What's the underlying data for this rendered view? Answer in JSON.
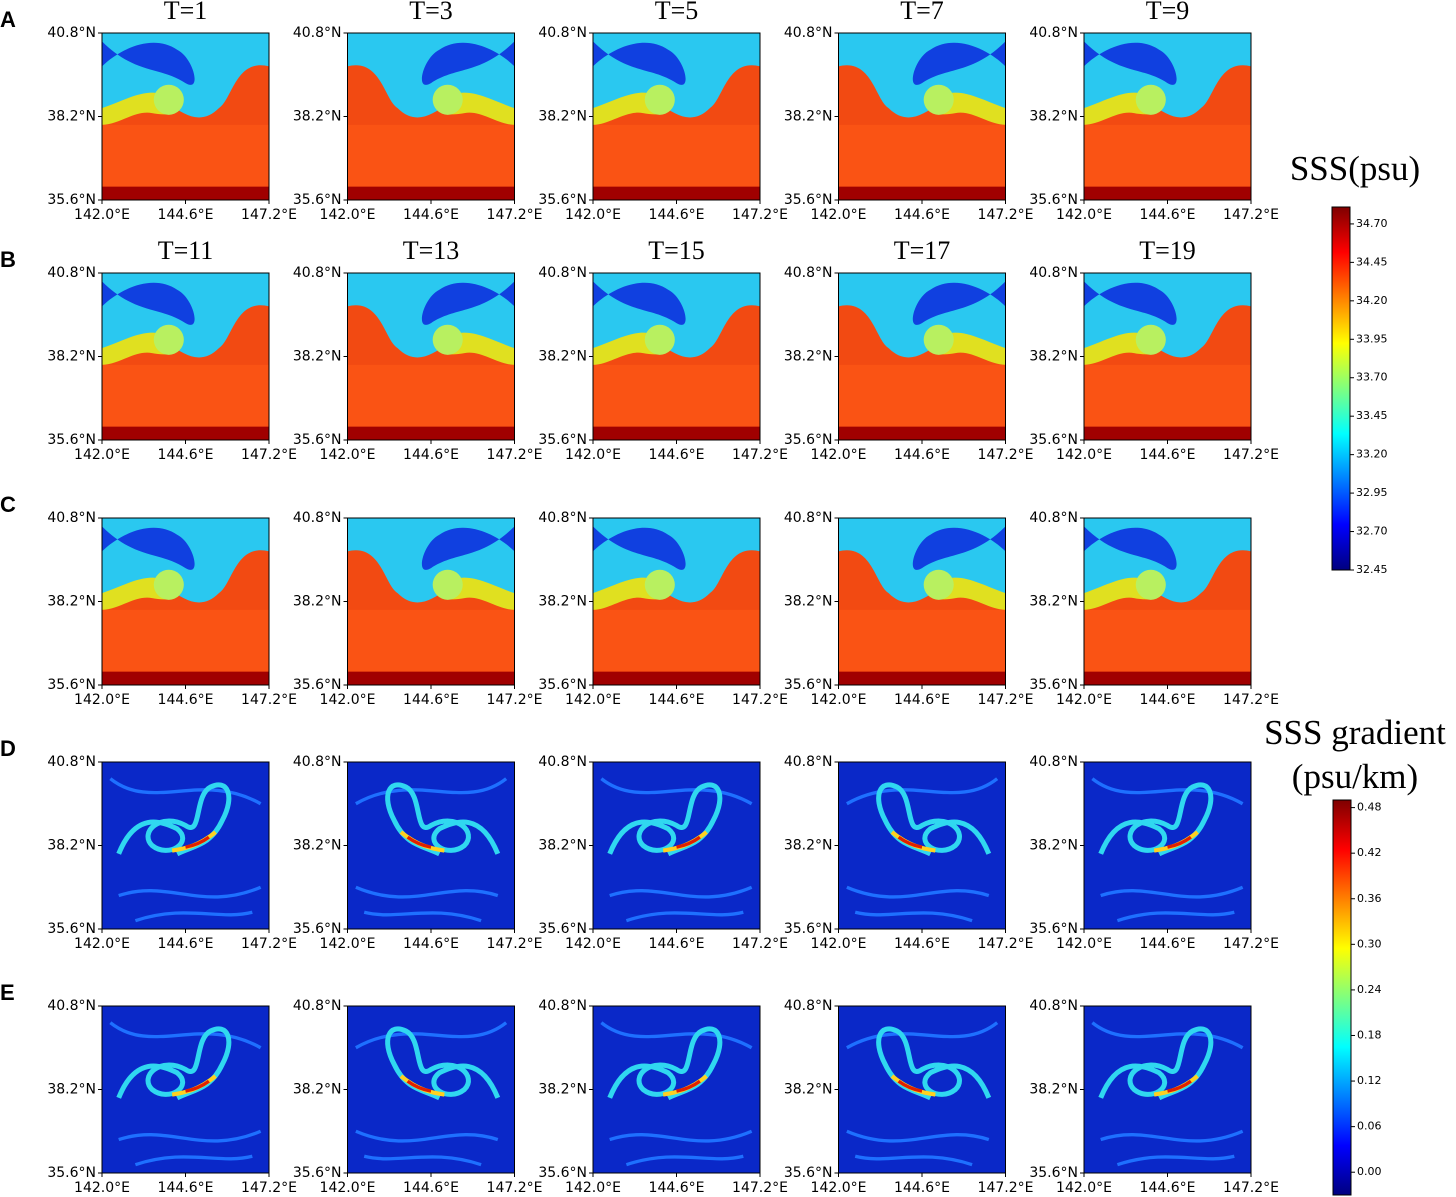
{
  "chart_data": {
    "type": "heatmap",
    "row_labels": [
      "A",
      "B",
      "C",
      "D",
      "E"
    ],
    "panel_titles": [
      [
        "T=1",
        "T=3",
        "T=5",
        "T=7",
        "T=9"
      ],
      [
        "T=11",
        "T=13",
        "T=15",
        "T=17",
        "T=19"
      ]
    ],
    "xlim": [
      142.0,
      147.2
    ],
    "xticks": [
      {
        "value": 142.0,
        "label": "142.0°E"
      },
      {
        "value": 144.6,
        "label": "144.6°E"
      },
      {
        "value": 147.2,
        "label": "147.2°E"
      }
    ],
    "ylim": [
      35.6,
      40.8
    ],
    "yticks": [
      {
        "value": 35.6,
        "label": "35.6°N"
      },
      {
        "value": 38.2,
        "label": "38.2°N"
      },
      {
        "value": 40.8,
        "label": "40.8°N"
      }
    ],
    "colormap": [
      "#00007f",
      "#0000ff",
      "#0080ff",
      "#00ffff",
      "#7fff7f",
      "#ffff00",
      "#ff8000",
      "#ff0000",
      "#7f0000"
    ],
    "colorbars": [
      {
        "title": [
          "SSS(psu)"
        ],
        "lim": [
          32.45,
          34.81
        ],
        "ticks": [
          {
            "value": 32.45,
            "label": "32.45"
          },
          {
            "value": 32.7,
            "label": "32.70"
          },
          {
            "value": 32.95,
            "label": "32.95"
          },
          {
            "value": 33.2,
            "label": "33.20"
          },
          {
            "value": 33.45,
            "label": "33.45"
          },
          {
            "value": 33.7,
            "label": "33.70"
          },
          {
            "value": 33.95,
            "label": "33.95"
          },
          {
            "value": 34.2,
            "label": "34.20"
          },
          {
            "value": 34.45,
            "label": "34.45"
          },
          {
            "value": 34.7,
            "label": "34.70"
          }
        ]
      },
      {
        "title": [
          "SSS gradient",
          "(psu/km)"
        ],
        "lim": [
          -0.03,
          0.49
        ],
        "ticks": [
          {
            "value": 0.0,
            "label": "0.00"
          },
          {
            "value": 0.06,
            "label": "0.06"
          },
          {
            "value": 0.12,
            "label": "0.12"
          },
          {
            "value": 0.18,
            "label": "0.18"
          },
          {
            "value": 0.24,
            "label": "0.24"
          },
          {
            "value": 0.3,
            "label": "0.30"
          },
          {
            "value": 0.36,
            "label": "0.36"
          },
          {
            "value": 0.42,
            "label": "0.42"
          },
          {
            "value": 0.48,
            "label": "0.48"
          }
        ]
      }
    ]
  }
}
